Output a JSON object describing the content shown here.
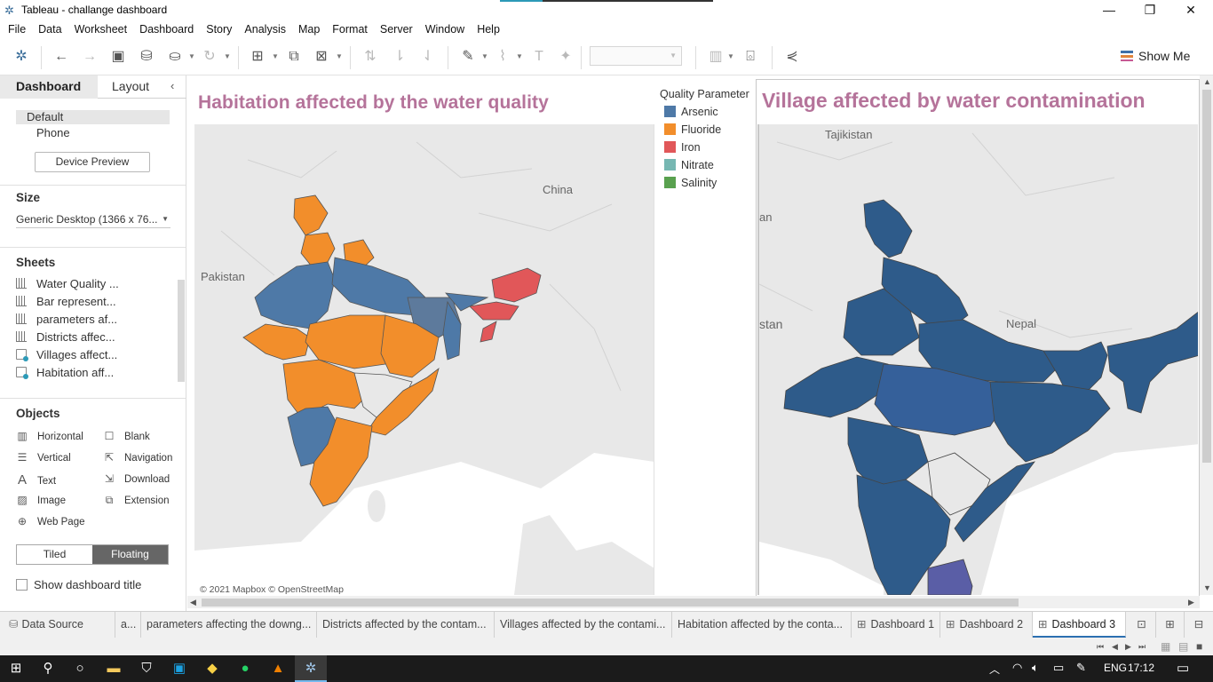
{
  "window": {
    "title": "Tableau - challange dashboard"
  },
  "menu": [
    "File",
    "Data",
    "Worksheet",
    "Dashboard",
    "Story",
    "Analysis",
    "Map",
    "Format",
    "Server",
    "Window",
    "Help"
  ],
  "toolbar": {
    "show_me": "Show Me"
  },
  "left_panel": {
    "tabs": {
      "dashboard": "Dashboard",
      "layout": "Layout"
    },
    "device": {
      "default": "Default",
      "phone": "Phone",
      "preview_button": "Device Preview"
    },
    "size": {
      "heading": "Size",
      "value": "Generic Desktop (1366 x 76..."
    },
    "sheets": {
      "heading": "Sheets",
      "items": [
        {
          "label": "Water Quality ...",
          "icon": "bar"
        },
        {
          "label": "Bar represent...",
          "icon": "bar"
        },
        {
          "label": "parameters af...",
          "icon": "bar"
        },
        {
          "label": "Districts affec...",
          "icon": "bar"
        },
        {
          "label": "Villages affect...",
          "icon": "map"
        },
        {
          "label": "Habitation aff...",
          "icon": "map"
        }
      ]
    },
    "objects": {
      "heading": "Objects",
      "items": [
        {
          "label": "Horizontal",
          "icon": "horizontal-icon"
        },
        {
          "label": "Blank",
          "icon": "blank-icon"
        },
        {
          "label": "Vertical",
          "icon": "vertical-icon"
        },
        {
          "label": "Navigation",
          "icon": "navigation-icon"
        },
        {
          "label": "Text",
          "icon": "text-icon"
        },
        {
          "label": "Download",
          "icon": "download-icon"
        },
        {
          "label": "Image",
          "icon": "image-icon"
        },
        {
          "label": "Extension",
          "icon": "extension-icon"
        },
        {
          "label": "Web Page",
          "icon": "web-page-icon"
        }
      ]
    },
    "mode": {
      "tiled": "Tiled",
      "floating": "Floating",
      "selected": "Floating"
    },
    "show_title": {
      "label": "Show dashboard title",
      "checked": false
    }
  },
  "dashboard": {
    "left_title": "Habitation affected by the water quality",
    "right_title": "Village affected by water contamination",
    "legend": {
      "title": "Quality Parameter",
      "items": [
        {
          "label": "Arsenic",
          "color": "#4e79a7"
        },
        {
          "label": "Fluoride",
          "color": "#f28e2b"
        },
        {
          "label": "Iron",
          "color": "#e15759"
        },
        {
          "label": "Nitrate",
          "color": "#76b7b2"
        },
        {
          "label": "Salinity",
          "color": "#59a14f"
        }
      ]
    },
    "map1_labels": {
      "china": "China",
      "pakistan": "Pakistan"
    },
    "map2_labels": {
      "tajikistan": "Tajikistan",
      "an": "an",
      "stan": "stan",
      "nepal": "Nepal"
    },
    "attribution": "© 2021 Mapbox © OpenStreetMap",
    "map2_fill": "#2e5b8a"
  },
  "tabs": [
    "Data Source",
    "a...",
    "parameters affecting the downg...",
    "Districts affected by the contam...",
    "Villages affected by the contami...",
    "Habitation affected by the conta...",
    "Dashboard 1",
    "Dashboard 2",
    "Dashboard 3"
  ],
  "active_tab": "Dashboard 3",
  "taskbar": {
    "lang": "ENG",
    "time": "17:12"
  }
}
